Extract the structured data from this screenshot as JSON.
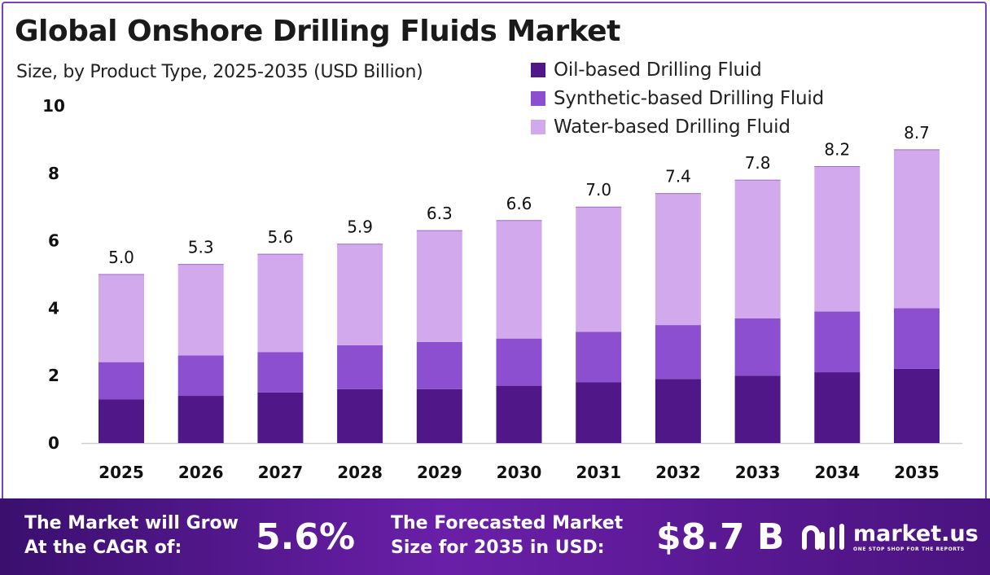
{
  "header": {
    "title": "Global Onshore Drilling Fluids Market",
    "subtitle": "Size, by Product Type, 2025-2035 (USD Billion)"
  },
  "colors": {
    "oil": "#4f1787",
    "synthetic": "#8b4fcf",
    "water": "#d3a9ee",
    "frame": "#7b3fb5"
  },
  "chart_data": {
    "type": "bar",
    "stacked": true,
    "title": "Global Onshore Drilling Fluids Market",
    "subtitle": "Size, by Product Type, 2025-2035 (USD Billion)",
    "categories": [
      "2025",
      "2026",
      "2027",
      "2028",
      "2029",
      "2030",
      "2031",
      "2032",
      "2033",
      "2034",
      "2035"
    ],
    "series": [
      {
        "name": "Oil-based Drilling Fluid",
        "values": [
          1.3,
          1.4,
          1.5,
          1.6,
          1.6,
          1.7,
          1.8,
          1.9,
          2.0,
          2.1,
          2.2
        ]
      },
      {
        "name": "Synthetic-based Drilling Fluid",
        "values": [
          1.1,
          1.2,
          1.2,
          1.3,
          1.4,
          1.4,
          1.5,
          1.6,
          1.7,
          1.8,
          1.8
        ]
      },
      {
        "name": "Water-based Drilling Fluid",
        "values": [
          2.6,
          2.7,
          2.9,
          3.0,
          3.3,
          3.5,
          3.7,
          3.9,
          4.1,
          4.3,
          4.7
        ]
      }
    ],
    "totals": [
      5.0,
      5.3,
      5.6,
      5.9,
      6.3,
      6.6,
      7.0,
      7.4,
      7.8,
      8.2,
      8.7
    ],
    "total_labels": [
      "5.0",
      "5.3",
      "5.6",
      "5.9",
      "6.3",
      "6.6",
      "7.0",
      "7.4",
      "7.8",
      "8.2",
      "8.7"
    ],
    "yticks": [
      "0",
      "2",
      "4",
      "6",
      "8",
      "10"
    ],
    "ylim": [
      0,
      10
    ],
    "xlabel": "",
    "ylabel": "",
    "legend": "top-right",
    "grid": false
  },
  "footer": {
    "cagr_label_line1": "The Market will Grow",
    "cagr_label_line2": "At the CAGR of:",
    "cagr_value": "5.6%",
    "forecast_label_line1": "The Forecasted Market",
    "forecast_label_line2": "Size for 2035 in USD:",
    "forecast_value": "$8.7 B"
  },
  "logo": {
    "name": "market.us",
    "tagline": "ONE STOP SHOP FOR THE REPORTS"
  }
}
